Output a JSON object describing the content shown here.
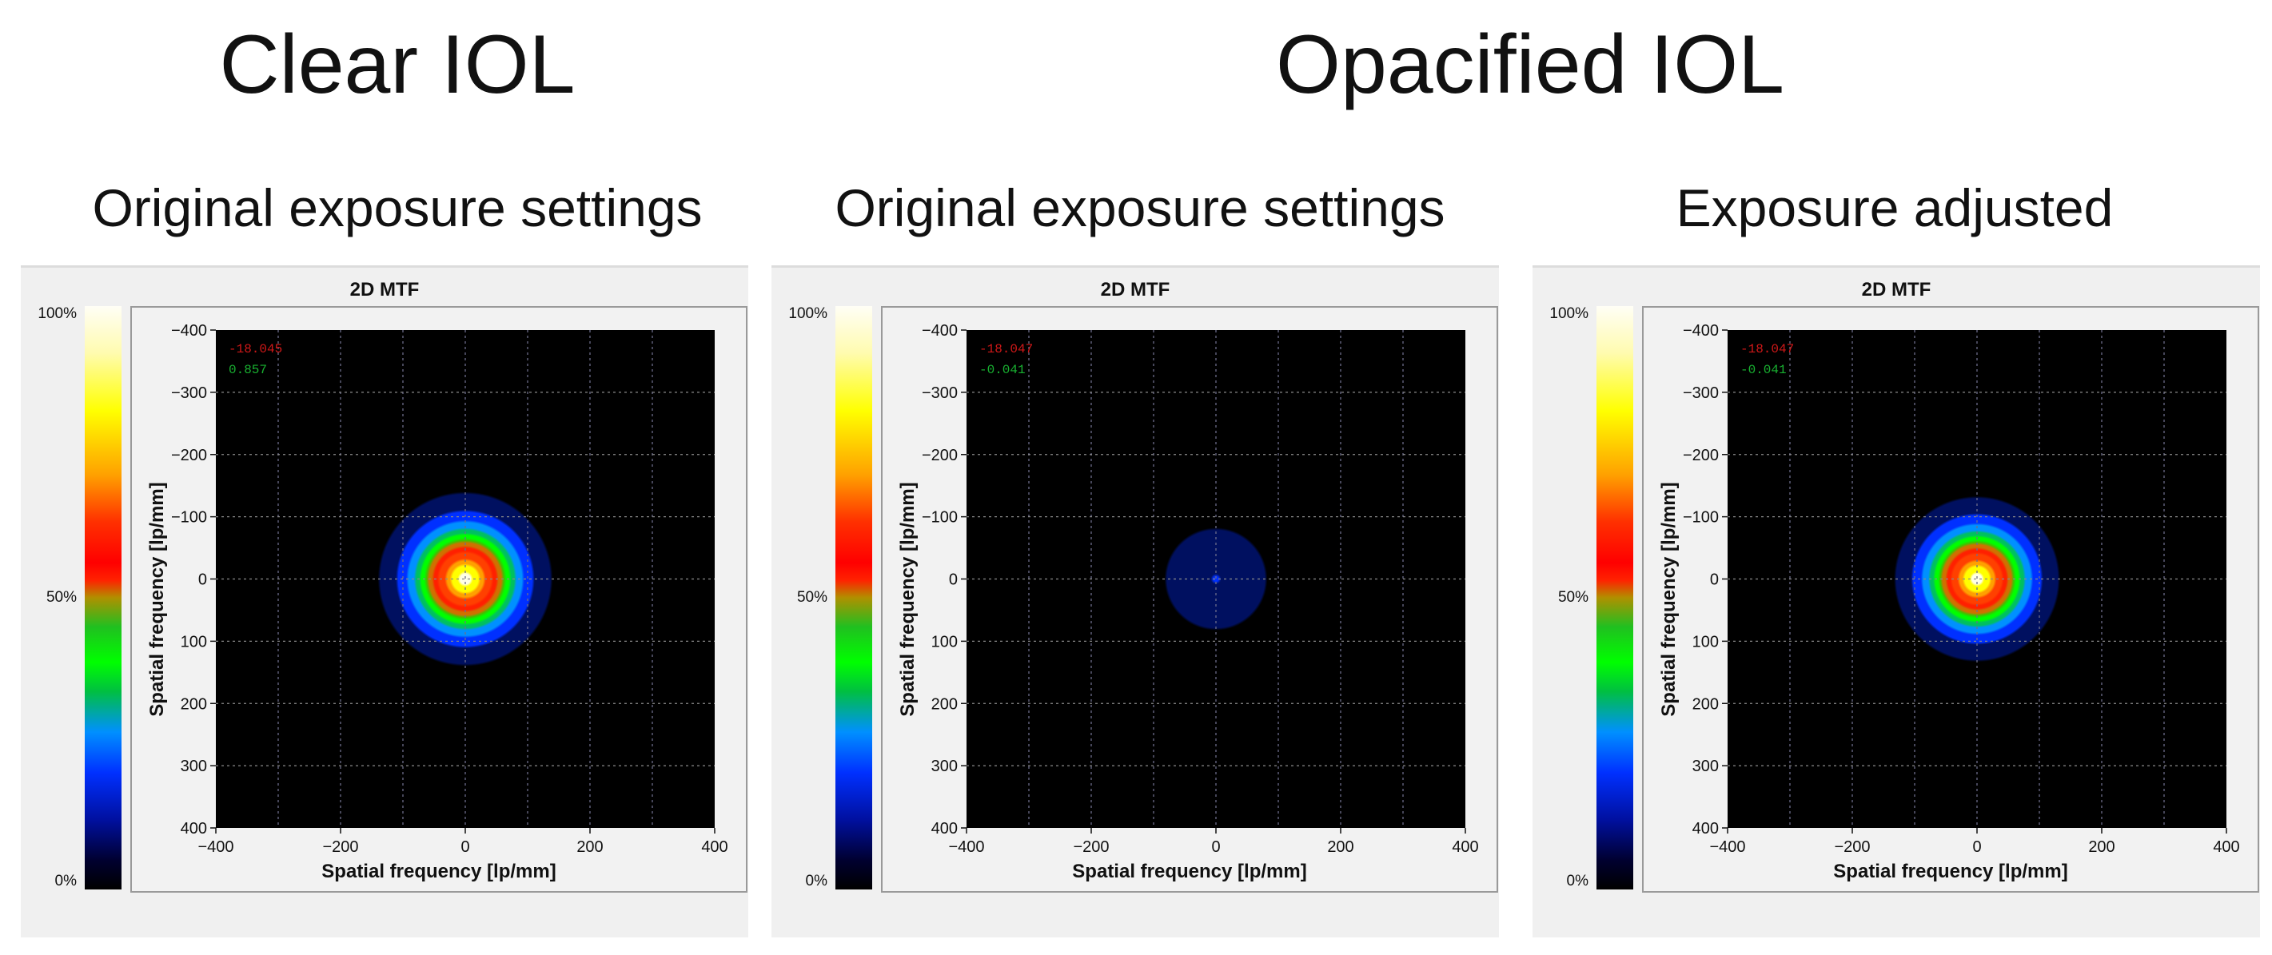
{
  "groups": [
    {
      "label": "Clear IOL"
    },
    {
      "label": "Opacified IOL"
    }
  ],
  "colorbar": {
    "top": "100%",
    "mid": "50%",
    "bottom": "0%"
  },
  "chart_data": [
    {
      "type": "heatmap",
      "panel_title": "Original exposure settings",
      "title": "2D MTF",
      "xlabel": "Spatial frequency [lp/mm]",
      "ylabel": "Spatial frequency [lp/mm]",
      "xlim": [
        -400,
        400
      ],
      "ylim": [
        -400,
        400
      ],
      "xticks": [
        "−400",
        "−200",
        "0",
        "200",
        "400"
      ],
      "yticks": [
        "−400",
        "−300",
        "−200",
        "−100",
        "0",
        "100",
        "200",
        "300",
        "400"
      ],
      "annotations": [
        "-18.045",
        "0.857"
      ],
      "peak_intensity_pct": 100,
      "blob_radius_lp_mm": 100,
      "grid": true
    },
    {
      "type": "heatmap",
      "panel_title": "Original exposure settings",
      "title": "2D MTF",
      "xlabel": "Spatial frequency [lp/mm]",
      "ylabel": "Spatial frequency [lp/mm]",
      "xlim": [
        -400,
        400
      ],
      "ylim": [
        -400,
        400
      ],
      "xticks": [
        "−400",
        "−200",
        "0",
        "200",
        "400"
      ],
      "yticks": [
        "−400",
        "−300",
        "−200",
        "−100",
        "0",
        "100",
        "200",
        "300",
        "400"
      ],
      "annotations": [
        "-18.047",
        "-0.041"
      ],
      "peak_intensity_pct": 18,
      "blob_radius_lp_mm": 100,
      "grid": true
    },
    {
      "type": "heatmap",
      "panel_title": "Exposure adjusted",
      "title": "2D MTF",
      "xlabel": "Spatial frequency [lp/mm]",
      "ylabel": "Spatial frequency [lp/mm]",
      "xlim": [
        -400,
        400
      ],
      "ylim": [
        -400,
        400
      ],
      "xticks": [
        "−400",
        "−200",
        "0",
        "200",
        "400"
      ],
      "yticks": [
        "−400",
        "−300",
        "−200",
        "−100",
        "0",
        "100",
        "200",
        "300",
        "400"
      ],
      "annotations": [
        "-18.047",
        "-0.041"
      ],
      "peak_intensity_pct": 100,
      "blob_radius_lp_mm": 95,
      "grid": true
    }
  ]
}
